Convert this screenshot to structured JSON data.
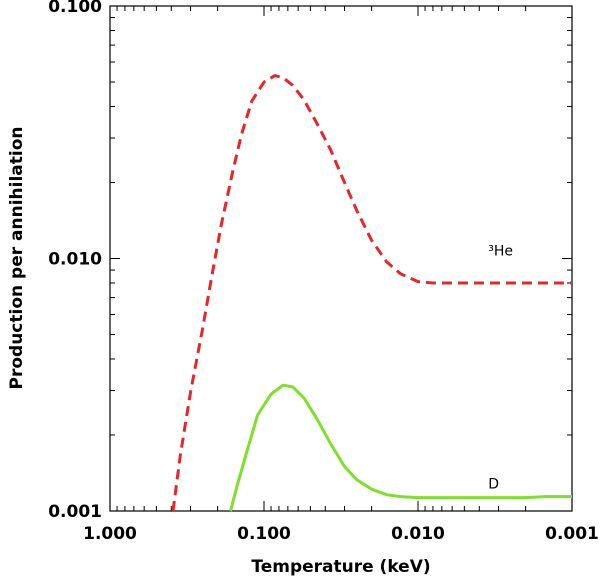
{
  "chart_data": {
    "type": "line",
    "title": "",
    "xlabel": "Temperature (keV)",
    "ylabel": "Production per annihilation",
    "x_scale": "log",
    "y_scale": "log",
    "x_reversed": true,
    "xlim": [
      1.0,
      0.001
    ],
    "ylim": [
      0.001,
      0.1
    ],
    "x_tick_labels": [
      "1.000",
      "0.100",
      "0.010",
      "0.001"
    ],
    "y_tick_labels": [
      "0.001",
      "0.010",
      "0.100"
    ],
    "grid": false,
    "series": [
      {
        "name": "³He",
        "color": "#e8262a",
        "style": "dashed",
        "points": [
          [
            0.39,
            0.001
          ],
          [
            0.35,
            0.00165
          ],
          [
            0.3,
            0.00295
          ],
          [
            0.25,
            0.0053
          ],
          [
            0.22,
            0.0083
          ],
          [
            0.19,
            0.0135
          ],
          [
            0.16,
            0.022
          ],
          [
            0.14,
            0.031
          ],
          [
            0.12,
            0.042
          ],
          [
            0.1,
            0.05
          ],
          [
            0.085,
            0.053
          ],
          [
            0.075,
            0.052
          ],
          [
            0.065,
            0.0485
          ],
          [
            0.055,
            0.0425
          ],
          [
            0.045,
            0.034
          ],
          [
            0.037,
            0.027
          ],
          [
            0.03,
            0.02
          ],
          [
            0.025,
            0.0155
          ],
          [
            0.02,
            0.0118
          ],
          [
            0.016,
            0.0097
          ],
          [
            0.013,
            0.0087
          ],
          [
            0.01,
            0.0081
          ],
          [
            0.008,
            0.008
          ],
          [
            0.006,
            0.008
          ],
          [
            0.004,
            0.008
          ],
          [
            0.002,
            0.008
          ],
          [
            0.001,
            0.008
          ]
        ]
      },
      {
        "name": "D",
        "color": "#7fe02a",
        "style": "solid",
        "points": [
          [
            0.165,
            0.001
          ],
          [
            0.15,
            0.00125
          ],
          [
            0.13,
            0.0017
          ],
          [
            0.11,
            0.0024
          ],
          [
            0.09,
            0.0029
          ],
          [
            0.075,
            0.00315
          ],
          [
            0.065,
            0.0031
          ],
          [
            0.055,
            0.0028
          ],
          [
            0.045,
            0.0023
          ],
          [
            0.037,
            0.00185
          ],
          [
            0.03,
            0.0015
          ],
          [
            0.025,
            0.00133
          ],
          [
            0.02,
            0.00122
          ],
          [
            0.016,
            0.00116
          ],
          [
            0.013,
            0.00114
          ],
          [
            0.01,
            0.00113
          ],
          [
            0.008,
            0.00113
          ],
          [
            0.005,
            0.00113
          ],
          [
            0.003,
            0.00113
          ],
          [
            0.002,
            0.00113
          ],
          [
            0.0015,
            0.00114
          ],
          [
            0.001,
            0.00114
          ]
        ]
      }
    ],
    "annotations": [
      {
        "text": "³He",
        "x": 0.0035,
        "y": 0.0103
      },
      {
        "text": "D",
        "x": 0.0035,
        "y": 0.00123
      }
    ]
  }
}
